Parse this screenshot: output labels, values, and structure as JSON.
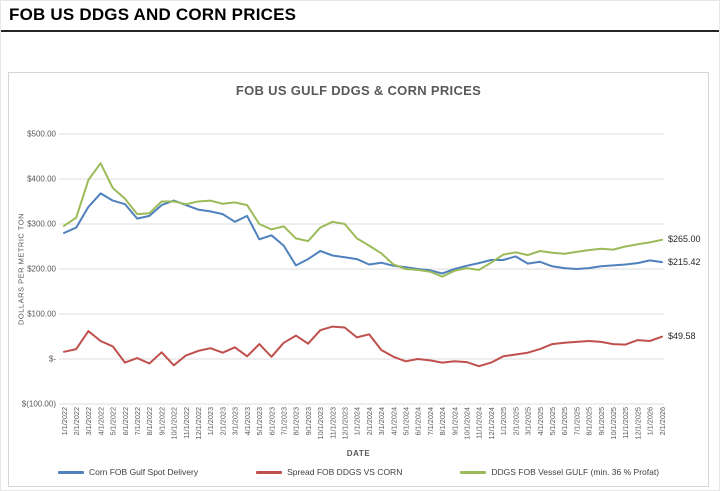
{
  "page": {
    "title": "FOB US DDGS AND CORN PRICES"
  },
  "chart_data": {
    "type": "line",
    "title": "FOB US GULF DDGS & CORN PRICES",
    "xlabel": "DATE",
    "ylabel": "DOLLARS PER METRIC TON",
    "ylim": [
      -100,
      550
    ],
    "grid": "horizontal",
    "legend_position": "bottom",
    "y_ticks": [
      {
        "label": "$500.00",
        "value": 500
      },
      {
        "label": "$400.00",
        "value": 400
      },
      {
        "label": "$300.00",
        "value": 300
      },
      {
        "label": "$200.00",
        "value": 200
      },
      {
        "label": "$100.00",
        "value": 100
      },
      {
        "label": "$-",
        "value": 0
      },
      {
        "label": "$(100.00)",
        "value": -100
      }
    ],
    "x": [
      "1/1/2022",
      "2/1/2022",
      "3/1/2022",
      "4/1/2022",
      "5/1/2022",
      "6/1/2022",
      "7/1/2022",
      "8/1/2022",
      "9/1/2022",
      "10/1/2022",
      "11/1/2022",
      "12/1/2022",
      "1/1/2023",
      "2/1/2023",
      "3/1/2023",
      "4/1/2023",
      "5/1/2023",
      "6/1/2023",
      "7/1/2023",
      "8/1/2023",
      "9/1/2023",
      "10/1/2023",
      "11/1/2023",
      "12/1/2023",
      "1/1/2024",
      "2/1/2024",
      "3/1/2024",
      "4/1/2024",
      "5/1/2024",
      "6/1/2024",
      "7/1/2024",
      "8/1/2024",
      "9/1/2024",
      "10/1/2024",
      "11/1/2024",
      "12/1/2024",
      "1/1/2025",
      "2/1/2025",
      "3/1/2025",
      "4/1/2025",
      "5/1/2025",
      "6/1/2025",
      "7/1/2025",
      "8/1/2025",
      "9/1/2025",
      "10/1/2025",
      "11/1/2025",
      "12/1/2025",
      "1/1/2026",
      "2/1/2026"
    ],
    "series": [
      {
        "key": "corn",
        "name": "Corn FOB Gulf Spot Delivery",
        "color": "#4F81BD",
        "end_label": "$215.42",
        "values": [
          280,
          292,
          338,
          368,
          352,
          344,
          312,
          318,
          342,
          352,
          342,
          332,
          328,
          322,
          305,
          318,
          266,
          275,
          252,
          208,
          222,
          240,
          230,
          226,
          222,
          210,
          214,
          207,
          204,
          200,
          197,
          190,
          200,
          207,
          213,
          220,
          220,
          228,
          212,
          216,
          206,
          202,
          200,
          202,
          206,
          208,
          210,
          213,
          219,
          215.42
        ]
      },
      {
        "key": "spread",
        "name": "Spread FOB DDGS VS CORN",
        "color": "#C0504D",
        "end_label": "$49.58",
        "values": [
          16,
          22,
          62,
          40,
          28,
          -8,
          2,
          -10,
          15,
          -14,
          8,
          18,
          24,
          14,
          26,
          6,
          33,
          5,
          36,
          52,
          34,
          64,
          72,
          70,
          48,
          55,
          20,
          5,
          -5,
          0,
          -3,
          -8,
          -5,
          -7,
          -16,
          -8,
          6,
          10,
          14,
          22,
          33,
          36,
          38,
          40,
          38,
          33,
          32,
          42,
          40,
          49.58
        ]
      },
      {
        "key": "ddgs",
        "name": "DDGS FOB Vessel GULF  (min. 36 % Profat)",
        "color": "#9BBB59",
        "end_label": "$265.00",
        "values": [
          296,
          314,
          398,
          435,
          380,
          356,
          322,
          324,
          350,
          350,
          344,
          350,
          352,
          345,
          348,
          342,
          300,
          288,
          295,
          268,
          262,
          292,
          305,
          300,
          268,
          252,
          235,
          210,
          200,
          198,
          194,
          183,
          196,
          202,
          198,
          214,
          232,
          237,
          231,
          240,
          236,
          234,
          238,
          242,
          245,
          243,
          250,
          255,
          259,
          265
        ]
      }
    ]
  }
}
